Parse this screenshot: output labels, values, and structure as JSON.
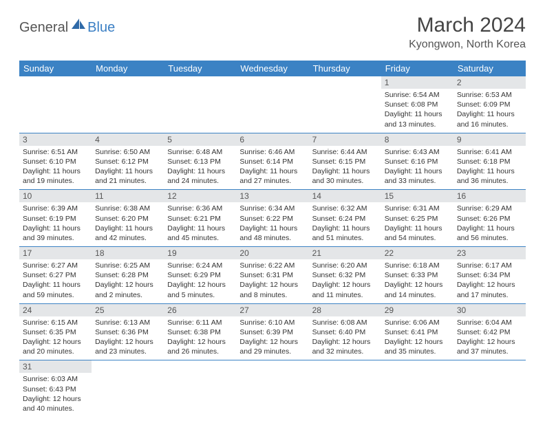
{
  "logo": {
    "part1": "General",
    "part2": "Blue"
  },
  "title": "March 2024",
  "location": "Kyongwon, North Korea",
  "colors": {
    "header_bg": "#3b82c4",
    "header_text": "#ffffff",
    "daynum_bg": "#e4e6e8",
    "row_divider": "#3b82c4",
    "logo_accent": "#3b7fc4"
  },
  "font": {
    "family": "Arial",
    "title_size": 30,
    "location_size": 16,
    "dayhead_size": 13,
    "daynum_size": 12,
    "cell_size": 10.5
  },
  "day_headers": [
    "Sunday",
    "Monday",
    "Tuesday",
    "Wednesday",
    "Thursday",
    "Friday",
    "Saturday"
  ],
  "weeks": [
    [
      null,
      null,
      null,
      null,
      null,
      {
        "n": "1",
        "sunrise": "Sunrise: 6:54 AM",
        "sunset": "Sunset: 6:08 PM",
        "dl1": "Daylight: 11 hours",
        "dl2": "and 13 minutes."
      },
      {
        "n": "2",
        "sunrise": "Sunrise: 6:53 AM",
        "sunset": "Sunset: 6:09 PM",
        "dl1": "Daylight: 11 hours",
        "dl2": "and 16 minutes."
      }
    ],
    [
      {
        "n": "3",
        "sunrise": "Sunrise: 6:51 AM",
        "sunset": "Sunset: 6:10 PM",
        "dl1": "Daylight: 11 hours",
        "dl2": "and 19 minutes."
      },
      {
        "n": "4",
        "sunrise": "Sunrise: 6:50 AM",
        "sunset": "Sunset: 6:12 PM",
        "dl1": "Daylight: 11 hours",
        "dl2": "and 21 minutes."
      },
      {
        "n": "5",
        "sunrise": "Sunrise: 6:48 AM",
        "sunset": "Sunset: 6:13 PM",
        "dl1": "Daylight: 11 hours",
        "dl2": "and 24 minutes."
      },
      {
        "n": "6",
        "sunrise": "Sunrise: 6:46 AM",
        "sunset": "Sunset: 6:14 PM",
        "dl1": "Daylight: 11 hours",
        "dl2": "and 27 minutes."
      },
      {
        "n": "7",
        "sunrise": "Sunrise: 6:44 AM",
        "sunset": "Sunset: 6:15 PM",
        "dl1": "Daylight: 11 hours",
        "dl2": "and 30 minutes."
      },
      {
        "n": "8",
        "sunrise": "Sunrise: 6:43 AM",
        "sunset": "Sunset: 6:16 PM",
        "dl1": "Daylight: 11 hours",
        "dl2": "and 33 minutes."
      },
      {
        "n": "9",
        "sunrise": "Sunrise: 6:41 AM",
        "sunset": "Sunset: 6:18 PM",
        "dl1": "Daylight: 11 hours",
        "dl2": "and 36 minutes."
      }
    ],
    [
      {
        "n": "10",
        "sunrise": "Sunrise: 6:39 AM",
        "sunset": "Sunset: 6:19 PM",
        "dl1": "Daylight: 11 hours",
        "dl2": "and 39 minutes."
      },
      {
        "n": "11",
        "sunrise": "Sunrise: 6:38 AM",
        "sunset": "Sunset: 6:20 PM",
        "dl1": "Daylight: 11 hours",
        "dl2": "and 42 minutes."
      },
      {
        "n": "12",
        "sunrise": "Sunrise: 6:36 AM",
        "sunset": "Sunset: 6:21 PM",
        "dl1": "Daylight: 11 hours",
        "dl2": "and 45 minutes."
      },
      {
        "n": "13",
        "sunrise": "Sunrise: 6:34 AM",
        "sunset": "Sunset: 6:22 PM",
        "dl1": "Daylight: 11 hours",
        "dl2": "and 48 minutes."
      },
      {
        "n": "14",
        "sunrise": "Sunrise: 6:32 AM",
        "sunset": "Sunset: 6:24 PM",
        "dl1": "Daylight: 11 hours",
        "dl2": "and 51 minutes."
      },
      {
        "n": "15",
        "sunrise": "Sunrise: 6:31 AM",
        "sunset": "Sunset: 6:25 PM",
        "dl1": "Daylight: 11 hours",
        "dl2": "and 54 minutes."
      },
      {
        "n": "16",
        "sunrise": "Sunrise: 6:29 AM",
        "sunset": "Sunset: 6:26 PM",
        "dl1": "Daylight: 11 hours",
        "dl2": "and 56 minutes."
      }
    ],
    [
      {
        "n": "17",
        "sunrise": "Sunrise: 6:27 AM",
        "sunset": "Sunset: 6:27 PM",
        "dl1": "Daylight: 11 hours",
        "dl2": "and 59 minutes."
      },
      {
        "n": "18",
        "sunrise": "Sunrise: 6:25 AM",
        "sunset": "Sunset: 6:28 PM",
        "dl1": "Daylight: 12 hours",
        "dl2": "and 2 minutes."
      },
      {
        "n": "19",
        "sunrise": "Sunrise: 6:24 AM",
        "sunset": "Sunset: 6:29 PM",
        "dl1": "Daylight: 12 hours",
        "dl2": "and 5 minutes."
      },
      {
        "n": "20",
        "sunrise": "Sunrise: 6:22 AM",
        "sunset": "Sunset: 6:31 PM",
        "dl1": "Daylight: 12 hours",
        "dl2": "and 8 minutes."
      },
      {
        "n": "21",
        "sunrise": "Sunrise: 6:20 AM",
        "sunset": "Sunset: 6:32 PM",
        "dl1": "Daylight: 12 hours",
        "dl2": "and 11 minutes."
      },
      {
        "n": "22",
        "sunrise": "Sunrise: 6:18 AM",
        "sunset": "Sunset: 6:33 PM",
        "dl1": "Daylight: 12 hours",
        "dl2": "and 14 minutes."
      },
      {
        "n": "23",
        "sunrise": "Sunrise: 6:17 AM",
        "sunset": "Sunset: 6:34 PM",
        "dl1": "Daylight: 12 hours",
        "dl2": "and 17 minutes."
      }
    ],
    [
      {
        "n": "24",
        "sunrise": "Sunrise: 6:15 AM",
        "sunset": "Sunset: 6:35 PM",
        "dl1": "Daylight: 12 hours",
        "dl2": "and 20 minutes."
      },
      {
        "n": "25",
        "sunrise": "Sunrise: 6:13 AM",
        "sunset": "Sunset: 6:36 PM",
        "dl1": "Daylight: 12 hours",
        "dl2": "and 23 minutes."
      },
      {
        "n": "26",
        "sunrise": "Sunrise: 6:11 AM",
        "sunset": "Sunset: 6:38 PM",
        "dl1": "Daylight: 12 hours",
        "dl2": "and 26 minutes."
      },
      {
        "n": "27",
        "sunrise": "Sunrise: 6:10 AM",
        "sunset": "Sunset: 6:39 PM",
        "dl1": "Daylight: 12 hours",
        "dl2": "and 29 minutes."
      },
      {
        "n": "28",
        "sunrise": "Sunrise: 6:08 AM",
        "sunset": "Sunset: 6:40 PM",
        "dl1": "Daylight: 12 hours",
        "dl2": "and 32 minutes."
      },
      {
        "n": "29",
        "sunrise": "Sunrise: 6:06 AM",
        "sunset": "Sunset: 6:41 PM",
        "dl1": "Daylight: 12 hours",
        "dl2": "and 35 minutes."
      },
      {
        "n": "30",
        "sunrise": "Sunrise: 6:04 AM",
        "sunset": "Sunset: 6:42 PM",
        "dl1": "Daylight: 12 hours",
        "dl2": "and 37 minutes."
      }
    ],
    [
      {
        "n": "31",
        "sunrise": "Sunrise: 6:03 AM",
        "sunset": "Sunset: 6:43 PM",
        "dl1": "Daylight: 12 hours",
        "dl2": "and 40 minutes."
      },
      null,
      null,
      null,
      null,
      null,
      null
    ]
  ]
}
